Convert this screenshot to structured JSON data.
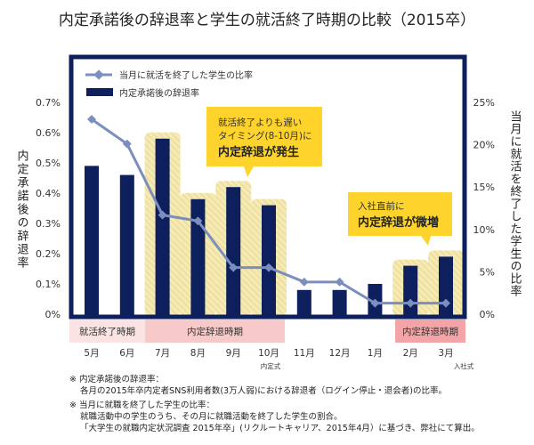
{
  "chart_data": {
    "type": "bar",
    "title": "内定承諾後の辞退率と学生の就活終了時期の比較（2015卒）",
    "categories": [
      "5月",
      "6月",
      "7月",
      "8月",
      "9月",
      "10月",
      "11月",
      "12月",
      "1月",
      "2月",
      "3月"
    ],
    "category_sublabels": {
      "10月": "内定式",
      "3月": "入社式"
    },
    "series": [
      {
        "name": "内定承諾後の辞退率",
        "type": "bar",
        "axis": "left",
        "color": "#0d1f5c",
        "values": [
          0.49,
          0.46,
          0.58,
          0.38,
          0.42,
          0.36,
          0.08,
          0.08,
          0.1,
          0.16,
          0.19
        ]
      },
      {
        "name": "当月に就活を終了した学生の比率",
        "type": "line",
        "axis": "right",
        "color": "#7b8fbf",
        "values": [
          23.0,
          20.1,
          11.7,
          11.0,
          5.5,
          5.5,
          3.8,
          3.8,
          1.3,
          1.3,
          1.3
        ]
      }
    ],
    "ylabel": "内定承諾後の辞退率",
    "ylim": [
      0,
      0.7
    ],
    "yticks": [
      "0%",
      "0.1%",
      "0.2%",
      "0.3%",
      "0.4%",
      "0.5%",
      "0.6%",
      "0.7%"
    ],
    "y2label": "当月に就活を終了した学生の比率",
    "y2lim": [
      0,
      25
    ],
    "y2ticks": [
      "0%",
      "5%",
      "10%",
      "15%",
      "20%",
      "25%"
    ],
    "legend": "top-left",
    "grid": false,
    "periods": [
      {
        "label": "就活終了時期",
        "from": "5月",
        "to": "6月",
        "color": "#fbe3e3"
      },
      {
        "label": "内定辞退時期",
        "from": "7月",
        "to": "10月",
        "color": "#f7c9c9"
      },
      {
        "label": "内定辞退時期",
        "from": "2月",
        "to": "3月",
        "color": "#f2a4a6"
      }
    ],
    "annotations": [
      {
        "lines": [
          "就活終了よりも遅い",
          "タイミング(8-10月)に"
        ],
        "emphasis": "内定辞退が発生"
      },
      {
        "lines": [
          "入社直前に"
        ],
        "emphasis": "内定辞退が微増"
      }
    ]
  },
  "notes": [
    "※ 内定承諾後の辞退率：",
    "各月の2015年卒内定者SNS利用者数(3万人弱)における辞退者（ログイン停止・退会者)の比率。",
    "※ 当月に就職を終了した学生の比率：",
    "就職活動中の学生のうち、その月に就職活動を終了した学生の割合。",
    "「大学生の就職内定状況調査 2015年卒」(リクルートキャリア、2015年4月）に基づき、弊社にて算出。"
  ],
  "colors": {
    "frame": "#0d1f5c",
    "highlight": "#f2e6a6",
    "callout": "#fdd32c"
  }
}
